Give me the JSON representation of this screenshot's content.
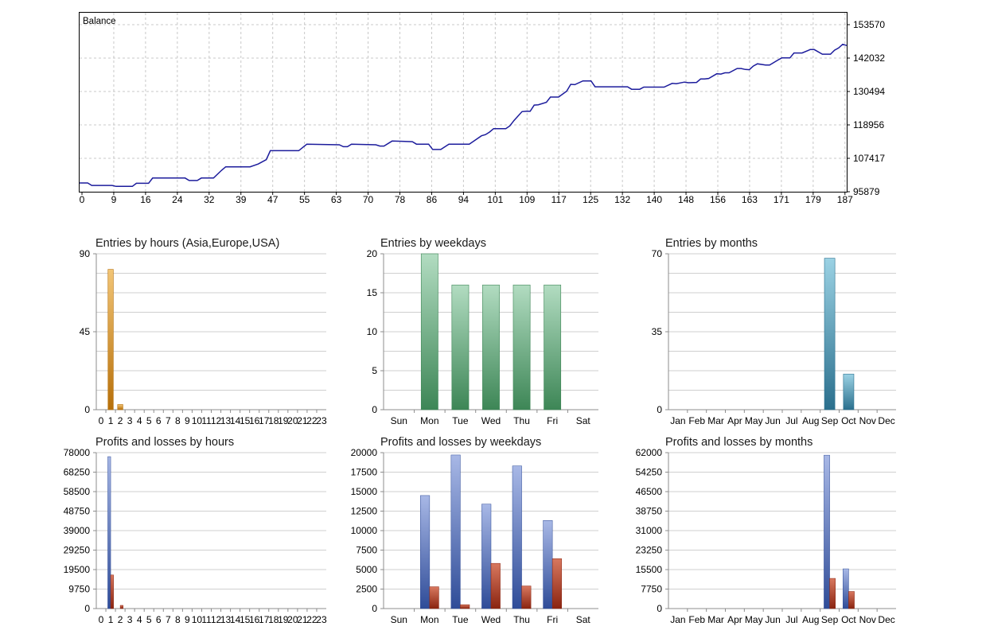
{
  "chart_data": [
    {
      "id": "balance",
      "type": "line",
      "title": "Balance",
      "xlabel": "",
      "ylabel": "",
      "x_ticks": [
        "0",
        "9",
        "16",
        "24",
        "32",
        "39",
        "47",
        "55",
        "63",
        "70",
        "78",
        "86",
        "94",
        "101",
        "109",
        "117",
        "125",
        "132",
        "140",
        "148",
        "156",
        "163",
        "171",
        "179",
        "187"
      ],
      "y_ticks": [
        "95879",
        "107417",
        "118956",
        "130494",
        "142032",
        "153570"
      ],
      "xlim": [
        0,
        189
      ],
      "ylim": [
        95879,
        153570
      ],
      "grid": true,
      "series": [
        {
          "color": "#1c1c9c",
          "points": [
            [
              0,
              98700
            ],
            [
              2,
              98700
            ],
            [
              3,
              97900
            ],
            [
              8,
              97900
            ],
            [
              9,
              97600
            ],
            [
              13,
              97600
            ],
            [
              14,
              98600
            ],
            [
              17,
              98600
            ],
            [
              18,
              100300
            ],
            [
              26,
              100300
            ],
            [
              27,
              99500
            ],
            [
              29,
              99500
            ],
            [
              30,
              100300
            ],
            [
              33,
              100300
            ],
            [
              35,
              102800
            ],
            [
              36,
              103900
            ],
            [
              42,
              103900
            ],
            [
              44,
              104800
            ],
            [
              46,
              106200
            ],
            [
              47,
              109100
            ],
            [
              54,
              109100
            ],
            [
              56,
              111200
            ],
            [
              64,
              111000
            ],
            [
              65,
              110400
            ],
            [
              66,
              110400
            ],
            [
              67,
              111200
            ],
            [
              73,
              111000
            ],
            [
              74,
              110600
            ],
            [
              75,
              110600
            ],
            [
              77,
              112200
            ],
            [
              82,
              112000
            ],
            [
              83,
              111200
            ],
            [
              86,
              111200
            ],
            [
              87,
              109500
            ],
            [
              89,
              109500
            ],
            [
              91,
              111200
            ],
            [
              96,
              111200
            ],
            [
              98,
              113000
            ],
            [
              99,
              113900
            ],
            [
              100,
              114300
            ],
            [
              101,
              115100
            ],
            [
              102,
              116200
            ],
            [
              105,
              116200
            ],
            [
              106,
              117100
            ],
            [
              107,
              118800
            ],
            [
              109,
              121700
            ],
            [
              110,
              121800
            ],
            [
              111,
              121800
            ],
            [
              112,
              123800
            ],
            [
              113,
              123900
            ],
            [
              115,
              124700
            ],
            [
              116,
              126400
            ],
            [
              118,
              126400
            ],
            [
              120,
              128300
            ],
            [
              121,
              130500
            ],
            [
              122,
              130400
            ],
            [
              124,
              131600
            ],
            [
              126,
              131600
            ],
            [
              127,
              129700
            ],
            [
              135,
              129700
            ],
            [
              136,
              128900
            ],
            [
              138,
              128900
            ],
            [
              139,
              129600
            ],
            [
              144,
              129600
            ],
            [
              146,
              130800
            ],
            [
              147,
              130700
            ],
            [
              149,
              131200
            ],
            [
              150,
              131000
            ],
            [
              152,
              131100
            ],
            [
              153,
              132200
            ],
            [
              154,
              132200
            ],
            [
              155,
              132400
            ],
            [
              157,
              133900
            ],
            [
              158,
              133800
            ],
            [
              159,
              134200
            ],
            [
              160,
              134200
            ],
            [
              162,
              135600
            ],
            [
              163,
              135600
            ],
            [
              164,
              135300
            ],
            [
              165,
              135200
            ],
            [
              166,
              136400
            ],
            [
              167,
              137100
            ],
            [
              169,
              136700
            ],
            [
              170,
              136700
            ],
            [
              172,
              138300
            ],
            [
              173,
              139000
            ],
            [
              175,
              139000
            ],
            [
              176,
              140600
            ],
            [
              178,
              140600
            ],
            [
              180,
              141700
            ],
            [
              181,
              141700
            ],
            [
              183,
              140200
            ],
            [
              185,
              140200
            ],
            [
              186,
              141500
            ],
            [
              187,
              142200
            ],
            [
              188,
              143400
            ],
            [
              189,
              143000
            ]
          ]
        }
      ]
    },
    {
      "id": "entries-hours",
      "type": "bar",
      "title": "Entries by hours (Asia,Europe,USA)",
      "categories": [
        "0",
        "1",
        "2",
        "3",
        "4",
        "5",
        "6",
        "7",
        "8",
        "9",
        "10",
        "11",
        "12",
        "13",
        "14",
        "15",
        "16",
        "17",
        "18",
        "19",
        "20",
        "21",
        "22",
        "23"
      ],
      "values": [
        0,
        81,
        3,
        0,
        0,
        0,
        0,
        0,
        0,
        0,
        0,
        0,
        0,
        0,
        0,
        0,
        0,
        0,
        0,
        0,
        0,
        0,
        0,
        0
      ],
      "y_ticks": [
        "0",
        "45",
        "90"
      ],
      "ylim": [
        0,
        90
      ],
      "colors": [
        "#f2c576",
        "#b66f09"
      ],
      "grid": true
    },
    {
      "id": "entries-weekdays",
      "type": "bar",
      "title": "Entries by weekdays",
      "categories": [
        "Sun",
        "Mon",
        "Tue",
        "Wed",
        "Thu",
        "Fri",
        "Sat"
      ],
      "values": [
        0,
        20,
        16,
        16,
        16,
        16,
        0
      ],
      "y_ticks": [
        "0",
        "5",
        "10",
        "15",
        "20"
      ],
      "ylim": [
        0,
        20
      ],
      "colors": [
        "#b2dcc1",
        "#3d8656"
      ],
      "grid": true
    },
    {
      "id": "entries-months",
      "type": "bar",
      "title": "Entries by months",
      "categories": [
        "Jan",
        "Feb",
        "Mar",
        "Apr",
        "May",
        "Jun",
        "Jul",
        "Aug",
        "Sep",
        "Oct",
        "Nov",
        "Dec"
      ],
      "values": [
        0,
        0,
        0,
        0,
        0,
        0,
        0,
        0,
        68,
        16,
        0,
        0
      ],
      "y_ticks": [
        "0",
        "35",
        "70"
      ],
      "ylim": [
        0,
        70
      ],
      "colors": [
        "#9bd2e4",
        "#2a6f8d"
      ],
      "grid": true
    },
    {
      "id": "pl-hours",
      "type": "bar",
      "title": "Profits and losses by hours",
      "categories": [
        "0",
        "1",
        "2",
        "3",
        "4",
        "5",
        "6",
        "7",
        "8",
        "9",
        "10",
        "11",
        "12",
        "13",
        "14",
        "15",
        "16",
        "17",
        "18",
        "19",
        "20",
        "21",
        "22",
        "23"
      ],
      "series": [
        {
          "values": [
            0,
            76000,
            0,
            0,
            0,
            0,
            0,
            0,
            0,
            0,
            0,
            0,
            0,
            0,
            0,
            0,
            0,
            0,
            0,
            0,
            0,
            0,
            0,
            0
          ],
          "colors": [
            "#a8b8e6",
            "#2f4c98"
          ]
        },
        {
          "values": [
            0,
            16800,
            1600,
            0,
            0,
            0,
            0,
            0,
            0,
            0,
            0,
            0,
            0,
            0,
            0,
            0,
            0,
            0,
            0,
            0,
            0,
            0,
            0,
            0
          ],
          "colors": [
            "#d8785f",
            "#8a2410"
          ]
        }
      ],
      "y_ticks": [
        "0",
        "9750",
        "19500",
        "29250",
        "39000",
        "48750",
        "58500",
        "68250",
        "78000"
      ],
      "ylim": [
        0,
        78000
      ],
      "grid": true
    },
    {
      "id": "pl-weekdays",
      "type": "bar",
      "title": "Profits and losses by weekdays",
      "categories": [
        "Sun",
        "Mon",
        "Tue",
        "Wed",
        "Thu",
        "Fri",
        "Sat"
      ],
      "series": [
        {
          "values": [
            0,
            14500,
            19700,
            13400,
            18300,
            11300,
            0
          ],
          "colors": [
            "#a8b8e6",
            "#2f4c98"
          ]
        },
        {
          "values": [
            0,
            2800,
            500,
            5800,
            2900,
            6400,
            0
          ],
          "colors": [
            "#d8785f",
            "#8a2410"
          ]
        }
      ],
      "y_ticks": [
        "0",
        "2500",
        "5000",
        "7500",
        "10000",
        "12500",
        "15000",
        "17500",
        "20000"
      ],
      "ylim": [
        0,
        20000
      ],
      "grid": true
    },
    {
      "id": "pl-months",
      "type": "bar",
      "title": "Profits and losses by months",
      "categories": [
        "Jan",
        "Feb",
        "Mar",
        "Apr",
        "May",
        "Jun",
        "Jul",
        "Aug",
        "Sep",
        "Oct",
        "Nov",
        "Dec"
      ],
      "series": [
        {
          "values": [
            0,
            0,
            0,
            0,
            0,
            0,
            0,
            0,
            61000,
            15800,
            0,
            0
          ],
          "colors": [
            "#a8b8e6",
            "#2f4c98"
          ]
        },
        {
          "values": [
            0,
            0,
            0,
            0,
            0,
            0,
            0,
            0,
            12000,
            6800,
            0,
            0
          ],
          "colors": [
            "#d8785f",
            "#8a2410"
          ]
        }
      ],
      "y_ticks": [
        "0",
        "7750",
        "15500",
        "23250",
        "31000",
        "38750",
        "46500",
        "54250",
        "62000"
      ],
      "ylim": [
        0,
        62000
      ],
      "grid": true
    }
  ]
}
